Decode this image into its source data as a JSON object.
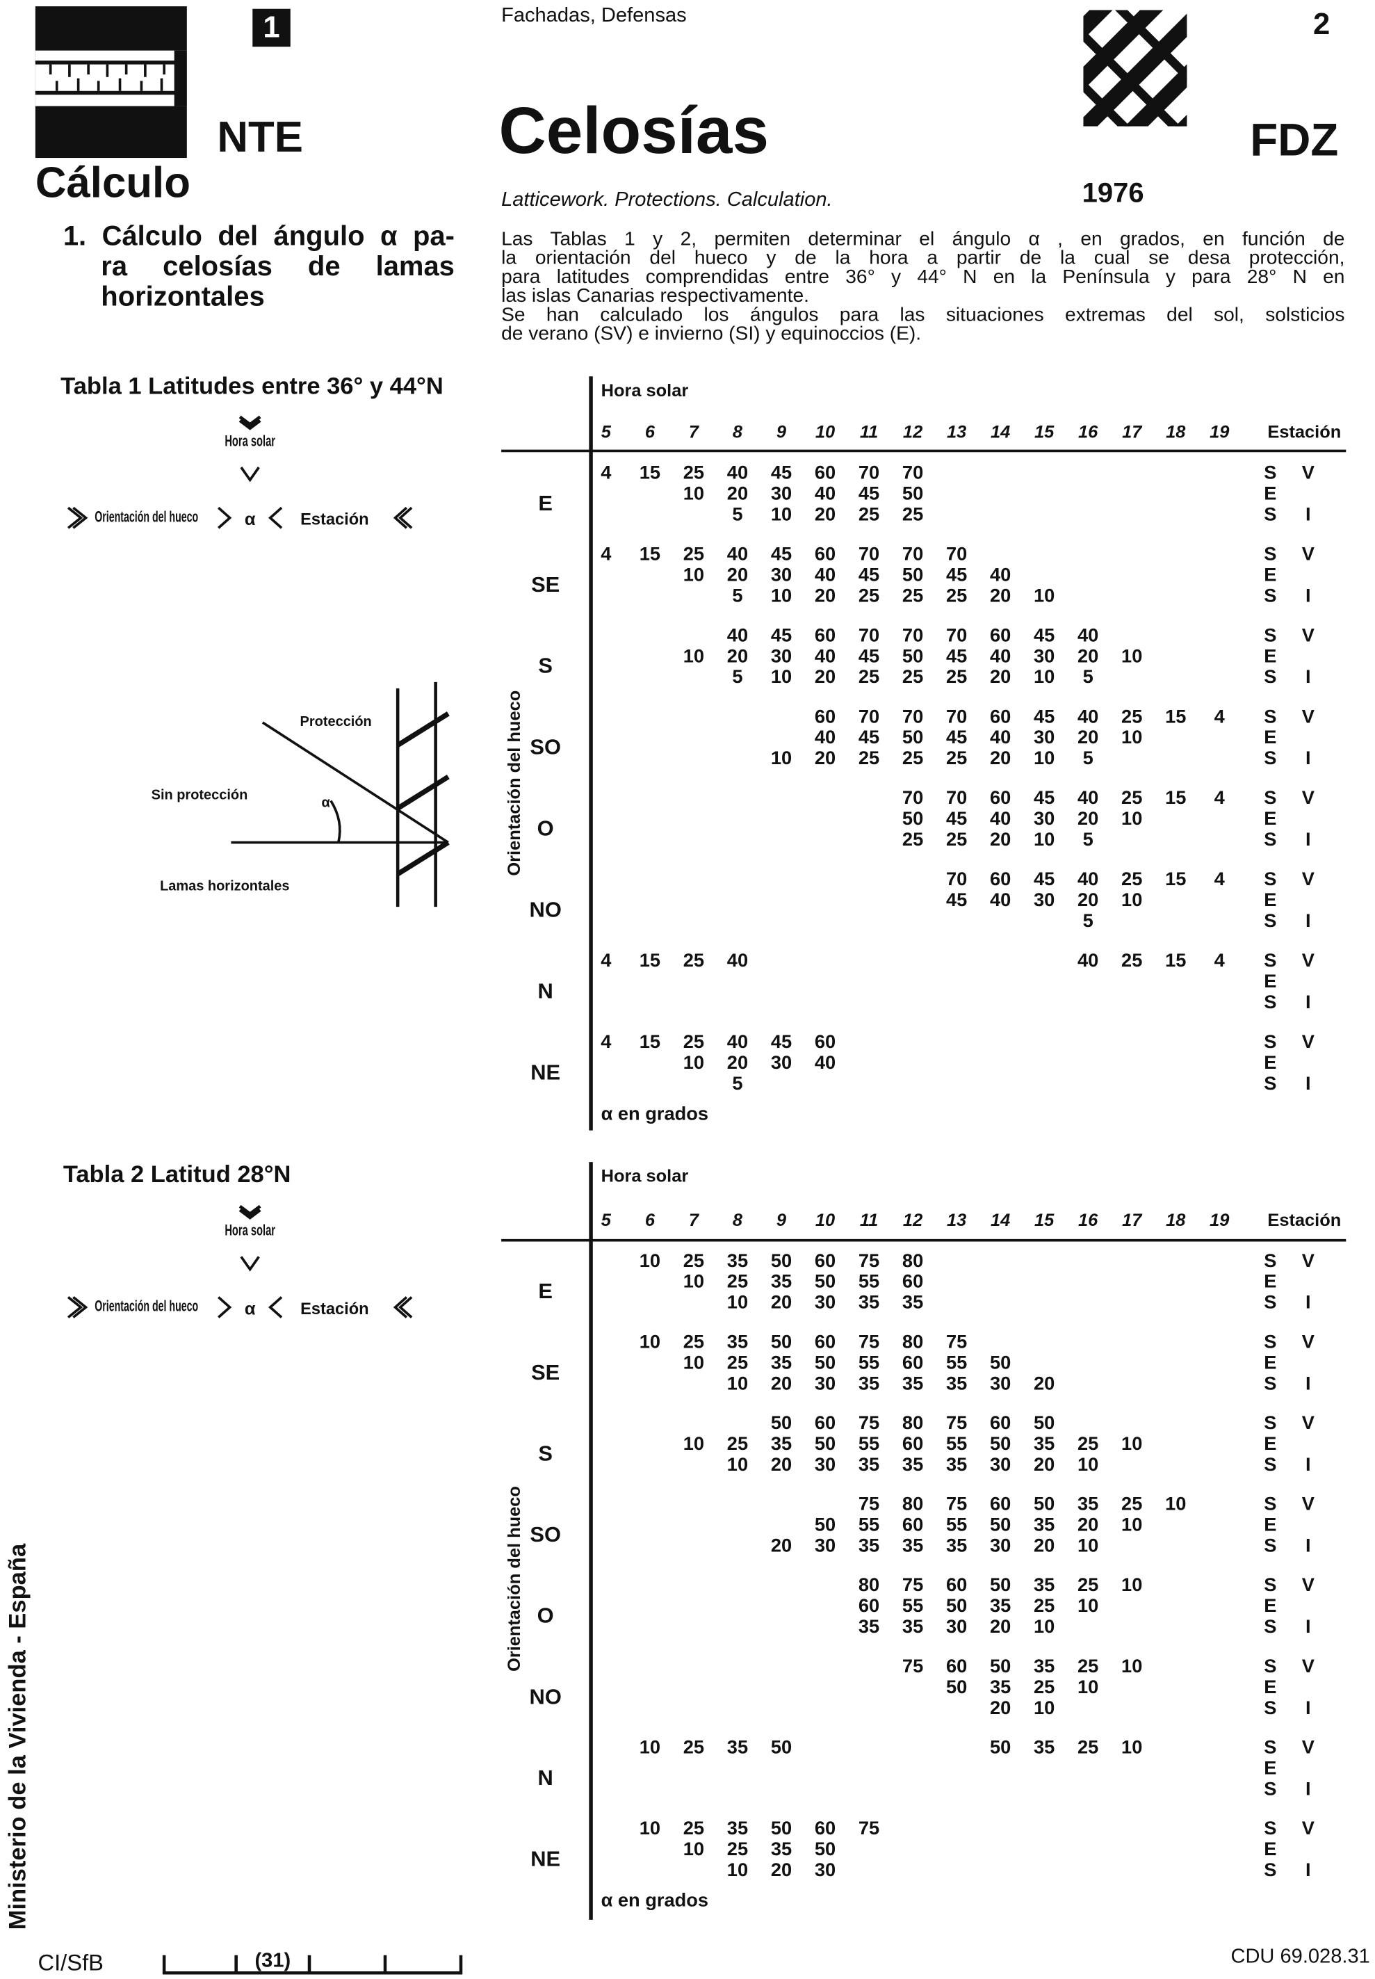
{
  "header": {
    "series_badge": "1",
    "series": "NTE",
    "section": "Cálculo",
    "category": "Fachadas, Defensas",
    "title": "Celosías",
    "subtitle": "Latticework. Protections. Calculation.",
    "sheet": "2",
    "code": "FDZ",
    "year": "1976"
  },
  "heading": {
    "lines": [
      "1. Cálculo del ángulo α pa-",
      "ra celosías de lamas",
      "horizontales"
    ]
  },
  "intro": {
    "lines": [
      "Las Tablas 1 y 2, permiten determinar el ángulo α , en grados, en función de",
      "la orientación del hueco y de la hora a partir de la cual se desa protección,",
      "para latitudes comprendidas entre 36° y 44° N en la Península y para 28° N en",
      "las islas Canarias respectivamente.",
      "Se han calculado los ángulos para las situaciones extremas del sol, solsticios",
      "de verano (SV) e invierno (SI) y equinoccios (E)."
    ]
  },
  "figure": {
    "protection": "Protección",
    "no_protection": "Sin protección",
    "slats": "Lamas horizontales",
    "angle": "α"
  },
  "tables": [
    {
      "title": "Tabla 1 Latitudes entre 36° y 44°N",
      "key": {
        "hour": "Hora solar",
        "orientation": "Orientación del hueco",
        "alpha": "α",
        "season": "Estación"
      },
      "hours_label": "Hora solar",
      "hours": [
        5,
        6,
        7,
        8,
        9,
        10,
        11,
        12,
        13,
        14,
        15,
        16,
        17,
        18,
        19
      ],
      "season_header": "Estación",
      "axis_label": "Orientación del hueco",
      "unit_note": "α en grados",
      "seasons": [
        [
          "S",
          "V"
        ],
        [
          "E"
        ],
        [
          "S",
          "I"
        ]
      ],
      "blocks": [
        {
          "orientation": "E",
          "rows": [
            [
              4,
              15,
              25,
              40,
              45,
              60,
              70,
              70,
              null,
              null,
              null,
              null,
              null,
              null,
              null
            ],
            [
              null,
              null,
              10,
              20,
              30,
              40,
              45,
              50,
              null,
              null,
              null,
              null,
              null,
              null,
              null
            ],
            [
              null,
              null,
              null,
              5,
              10,
              20,
              25,
              25,
              null,
              null,
              null,
              null,
              null,
              null,
              null
            ]
          ]
        },
        {
          "orientation": "SE",
          "rows": [
            [
              4,
              15,
              25,
              40,
              45,
              60,
              70,
              70,
              70,
              null,
              null,
              null,
              null,
              null,
              null
            ],
            [
              null,
              null,
              10,
              20,
              30,
              40,
              45,
              50,
              45,
              40,
              null,
              null,
              null,
              null,
              null
            ],
            [
              null,
              null,
              null,
              5,
              10,
              20,
              25,
              25,
              25,
              20,
              10,
              null,
              null,
              null,
              null
            ]
          ]
        },
        {
          "orientation": "S",
          "rows": [
            [
              null,
              null,
              null,
              40,
              45,
              60,
              70,
              70,
              70,
              60,
              45,
              40,
              null,
              null,
              null
            ],
            [
              null,
              null,
              10,
              20,
              30,
              40,
              45,
              50,
              45,
              40,
              30,
              20,
              10,
              null,
              null
            ],
            [
              null,
              null,
              null,
              5,
              10,
              20,
              25,
              25,
              25,
              20,
              10,
              5,
              null,
              null,
              null
            ]
          ]
        },
        {
          "orientation": "SO",
          "rows": [
            [
              null,
              null,
              null,
              null,
              null,
              60,
              70,
              70,
              70,
              60,
              45,
              40,
              25,
              15,
              4
            ],
            [
              null,
              null,
              null,
              null,
              null,
              40,
              45,
              50,
              45,
              40,
              30,
              20,
              10,
              null,
              null
            ],
            [
              null,
              null,
              null,
              null,
              10,
              20,
              25,
              25,
              25,
              20,
              10,
              5,
              null,
              null,
              null
            ]
          ]
        },
        {
          "orientation": "O",
          "rows": [
            [
              null,
              null,
              null,
              null,
              null,
              null,
              null,
              70,
              70,
              60,
              45,
              40,
              25,
              15,
              4
            ],
            [
              null,
              null,
              null,
              null,
              null,
              null,
              null,
              50,
              45,
              40,
              30,
              20,
              10,
              null,
              null
            ],
            [
              null,
              null,
              null,
              null,
              null,
              null,
              null,
              25,
              25,
              20,
              10,
              5,
              null,
              null,
              null
            ]
          ]
        },
        {
          "orientation": "NO",
          "rows": [
            [
              null,
              null,
              null,
              null,
              null,
              null,
              null,
              null,
              70,
              60,
              45,
              40,
              25,
              15,
              4
            ],
            [
              null,
              null,
              null,
              null,
              null,
              null,
              null,
              null,
              45,
              40,
              30,
              20,
              10,
              null,
              null
            ],
            [
              null,
              null,
              null,
              null,
              null,
              null,
              null,
              null,
              null,
              null,
              null,
              5,
              null,
              null,
              null
            ]
          ]
        },
        {
          "orientation": "N",
          "rows": [
            [
              4,
              15,
              25,
              40,
              null,
              null,
              null,
              null,
              null,
              null,
              null,
              40,
              25,
              15,
              4
            ],
            [
              null,
              null,
              null,
              null,
              null,
              null,
              null,
              null,
              null,
              null,
              null,
              null,
              null,
              null,
              null
            ],
            [
              null,
              null,
              null,
              null,
              null,
              null,
              null,
              null,
              null,
              null,
              null,
              null,
              null,
              null,
              null
            ]
          ]
        },
        {
          "orientation": "NE",
          "rows": [
            [
              4,
              15,
              25,
              40,
              45,
              60,
              null,
              null,
              null,
              null,
              null,
              null,
              null,
              null,
              null
            ],
            [
              null,
              null,
              10,
              20,
              30,
              40,
              null,
              null,
              null,
              null,
              null,
              null,
              null,
              null,
              null
            ],
            [
              null,
              null,
              null,
              5,
              null,
              null,
              null,
              null,
              null,
              null,
              null,
              null,
              null,
              null,
              null
            ]
          ]
        }
      ]
    },
    {
      "title": "Tabla 2 Latitud 28°N",
      "key": {
        "hour": "Hora solar",
        "orientation": "Orientación del hueco",
        "alpha": "α",
        "season": "Estación"
      },
      "hours_label": "Hora solar",
      "hours": [
        5,
        6,
        7,
        8,
        9,
        10,
        11,
        12,
        13,
        14,
        15,
        16,
        17,
        18,
        19
      ],
      "season_header": "Estación",
      "axis_label": "Orientación del hueco",
      "unit_note": "α en grados",
      "seasons": [
        [
          "S",
          "V"
        ],
        [
          "E"
        ],
        [
          "S",
          "I"
        ]
      ],
      "blocks": [
        {
          "orientation": "E",
          "rows": [
            [
              null,
              10,
              25,
              35,
              50,
              60,
              75,
              80,
              null,
              null,
              null,
              null,
              null,
              null,
              null
            ],
            [
              null,
              null,
              10,
              25,
              35,
              50,
              55,
              60,
              null,
              null,
              null,
              null,
              null,
              null,
              null
            ],
            [
              null,
              null,
              null,
              10,
              20,
              30,
              35,
              35,
              null,
              null,
              null,
              null,
              null,
              null,
              null
            ]
          ]
        },
        {
          "orientation": "SE",
          "rows": [
            [
              null,
              10,
              25,
              35,
              50,
              60,
              75,
              80,
              75,
              null,
              null,
              null,
              null,
              null,
              null
            ],
            [
              null,
              null,
              10,
              25,
              35,
              50,
              55,
              60,
              55,
              50,
              null,
              null,
              null,
              null,
              null
            ],
            [
              null,
              null,
              null,
              10,
              20,
              30,
              35,
              35,
              35,
              30,
              20,
              null,
              null,
              null,
              null
            ]
          ]
        },
        {
          "orientation": "S",
          "rows": [
            [
              null,
              null,
              null,
              null,
              50,
              60,
              75,
              80,
              75,
              60,
              50,
              null,
              null,
              null,
              null
            ],
            [
              null,
              null,
              10,
              25,
              35,
              50,
              55,
              60,
              55,
              50,
              35,
              25,
              10,
              null,
              null
            ],
            [
              null,
              null,
              null,
              10,
              20,
              30,
              35,
              35,
              35,
              30,
              20,
              10,
              null,
              null,
              null
            ]
          ]
        },
        {
          "orientation": "SO",
          "rows": [
            [
              null,
              null,
              null,
              null,
              null,
              null,
              75,
              80,
              75,
              60,
              50,
              35,
              25,
              10,
              null
            ],
            [
              null,
              null,
              null,
              null,
              null,
              50,
              55,
              60,
              55,
              50,
              35,
              20,
              10,
              null,
              null
            ],
            [
              null,
              null,
              null,
              null,
              20,
              30,
              35,
              35,
              35,
              30,
              20,
              10,
              null,
              null,
              null
            ]
          ]
        },
        {
          "orientation": "O",
          "rows": [
            [
              null,
              null,
              null,
              null,
              null,
              null,
              80,
              75,
              60,
              50,
              35,
              25,
              10,
              null,
              null
            ],
            [
              null,
              null,
              null,
              null,
              null,
              null,
              60,
              55,
              50,
              35,
              25,
              10,
              null,
              null,
              null
            ],
            [
              null,
              null,
              null,
              null,
              null,
              null,
              35,
              35,
              30,
              20,
              10,
              null,
              null,
              null,
              null
            ]
          ]
        },
        {
          "orientation": "NO",
          "rows": [
            [
              null,
              null,
              null,
              null,
              null,
              null,
              null,
              75,
              60,
              50,
              35,
              25,
              10,
              null,
              null
            ],
            [
              null,
              null,
              null,
              null,
              null,
              null,
              null,
              null,
              50,
              35,
              25,
              10,
              null,
              null,
              null
            ],
            [
              null,
              null,
              null,
              null,
              null,
              null,
              null,
              null,
              null,
              20,
              10,
              null,
              null,
              null,
              null
            ]
          ]
        },
        {
          "orientation": "N",
          "rows": [
            [
              null,
              10,
              25,
              35,
              50,
              null,
              null,
              null,
              null,
              50,
              35,
              25,
              10,
              null,
              null
            ],
            [
              null,
              null,
              null,
              null,
              null,
              null,
              null,
              null,
              null,
              null,
              null,
              null,
              null,
              null,
              null
            ],
            [
              null,
              null,
              null,
              null,
              null,
              null,
              null,
              null,
              null,
              null,
              null,
              null,
              null,
              null,
              null
            ]
          ]
        },
        {
          "orientation": "NE",
          "rows": [
            [
              null,
              10,
              25,
              35,
              50,
              60,
              75,
              null,
              null,
              null,
              null,
              null,
              null,
              null,
              null
            ],
            [
              null,
              null,
              10,
              25,
              35,
              50,
              null,
              null,
              null,
              null,
              null,
              null,
              null,
              null,
              null
            ],
            [
              null,
              null,
              null,
              10,
              20,
              30,
              null,
              null,
              null,
              null,
              null,
              null,
              null,
              null,
              null
            ]
          ]
        }
      ]
    }
  ],
  "footer": {
    "publisher": "Ministerio de la Vivienda - España",
    "classification": "CI/SfB",
    "class_code": "(31)",
    "cdu": "CDU 69.028.31"
  }
}
